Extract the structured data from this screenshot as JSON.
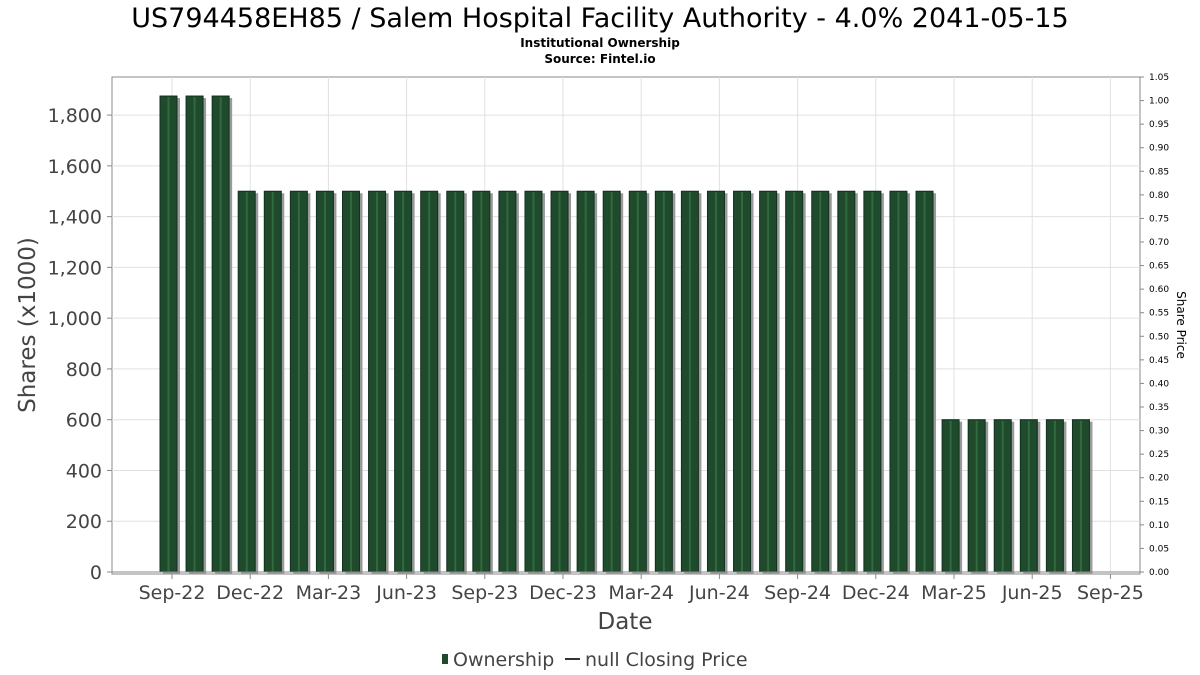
{
  "chart_data": {
    "type": "bar",
    "title": "US794458EH85 / Salem Hospital Facility Authority - 4.0% 2041-05-15",
    "subtitle": "Institutional Ownership",
    "source": "Source: Fintel.io",
    "xlabel": "Date",
    "ylabel": "Shares (x1000)",
    "ylabel_right": "Share Price",
    "ylim": [
      0,
      1950
    ],
    "ylim_right": [
      0,
      1.05
    ],
    "y_ticks": [
      0,
      200,
      400,
      600,
      800,
      1000,
      1200,
      1400,
      1600,
      1800
    ],
    "y_tick_labels": [
      "0",
      "200",
      "400",
      "600",
      "800",
      "1,000",
      "1,200",
      "1,400",
      "1,600",
      "1,800"
    ],
    "y_right_ticks": [
      "0.00",
      "0.05",
      "0.10",
      "0.15",
      "0.20",
      "0.25",
      "0.30",
      "0.35",
      "0.40",
      "0.45",
      "0.50",
      "0.55",
      "0.60",
      "0.65",
      "0.70",
      "0.75",
      "0.80",
      "0.85",
      "0.90",
      "0.95",
      "1.00",
      "1.05"
    ],
    "x_tick_labels": [
      "Sep-22",
      "Dec-22",
      "Mar-23",
      "Jun-23",
      "Sep-23",
      "Dec-23",
      "Mar-24",
      "Jun-24",
      "Sep-24",
      "Dec-24",
      "Mar-25",
      "Jun-25",
      "Sep-25"
    ],
    "series": [
      {
        "name": "Ownership",
        "color": "#1f4a2c",
        "values": [
          1875,
          1875,
          1875,
          1500,
          1500,
          1500,
          1500,
          1500,
          1500,
          1500,
          1500,
          1500,
          1500,
          1500,
          1500,
          1500,
          1500,
          1500,
          1500,
          1500,
          1500,
          1500,
          1500,
          1500,
          1500,
          1500,
          1500,
          1500,
          1500,
          1500,
          600,
          600,
          600,
          600,
          600,
          600
        ]
      }
    ],
    "legend": {
      "position": "bottom",
      "items": [
        "Ownership",
        "null Closing Price"
      ]
    }
  }
}
